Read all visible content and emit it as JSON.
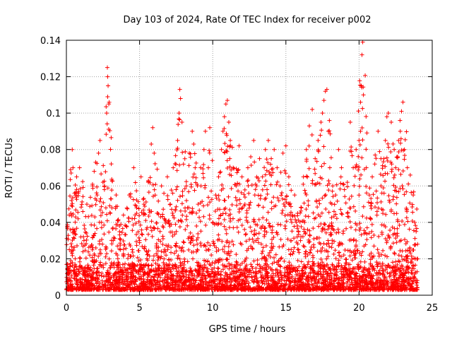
{
  "chart_data": {
    "type": "scatter",
    "title": "Day 103 of 2024, Rate Of TEC Index for receiver p002",
    "xlabel": "GPS time / hours",
    "ylabel": "ROTI / TECUs",
    "xlim": [
      0,
      25
    ],
    "ylim": [
      0,
      0.14
    ],
    "xticks": [
      0,
      5,
      10,
      15,
      20,
      25
    ],
    "xtick_labels": [
      "0",
      "5",
      "10",
      "15",
      "20",
      "25"
    ],
    "yticks": [
      0,
      0.02,
      0.04,
      0.06,
      0.08,
      0.1,
      0.12,
      0.14
    ],
    "ytick_labels": [
      "0",
      "0.02",
      "0.04",
      "0.06",
      "0.08",
      "0.1",
      "0.12",
      "0.14"
    ],
    "grid": true,
    "marker": "+",
    "marker_color": "#ff0000",
    "series": [
      {
        "name": "ROTI",
        "points": [
          [
            0.1,
            0.012
          ],
          [
            0.2,
            0.025
          ],
          [
            0.3,
            0.045
          ],
          [
            0.35,
            0.052
          ],
          [
            0.4,
            0.08
          ],
          [
            0.45,
            0.07
          ],
          [
            0.5,
            0.035
          ],
          [
            0.6,
            0.02
          ],
          [
            0.7,
            0.065
          ],
          [
            0.8,
            0.042
          ],
          [
            0.9,
            0.07
          ],
          [
            1.0,
            0.015
          ],
          [
            1.2,
            0.03
          ],
          [
            1.4,
            0.05
          ],
          [
            1.6,
            0.022
          ],
          [
            1.8,
            0.06
          ],
          [
            1.9,
            0.068
          ],
          [
            2.0,
            0.073
          ],
          [
            2.1,
            0.055
          ],
          [
            2.2,
            0.078
          ],
          [
            2.3,
            0.085
          ],
          [
            2.4,
            0.04
          ],
          [
            2.5,
            0.062
          ],
          [
            2.6,
            0.058
          ],
          [
            2.7,
            0.048
          ],
          [
            2.75,
            0.1
          ],
          [
            2.8,
            0.125
          ],
          [
            2.82,
            0.12
          ],
          [
            2.85,
            0.115
          ],
          [
            2.9,
            0.105
          ],
          [
            3.0,
            0.045
          ],
          [
            3.2,
            0.03
          ],
          [
            3.4,
            0.055
          ],
          [
            3.5,
            0.041
          ],
          [
            3.7,
            0.025
          ],
          [
            3.9,
            0.044
          ],
          [
            4.1,
            0.038
          ],
          [
            4.3,
            0.055
          ],
          [
            4.5,
            0.025
          ],
          [
            4.6,
            0.07
          ],
          [
            4.8,
            0.045
          ],
          [
            5.0,
            0.03
          ],
          [
            5.1,
            0.065
          ],
          [
            5.3,
            0.05
          ],
          [
            5.5,
            0.02
          ],
          [
            5.6,
            0.062
          ],
          [
            5.8,
            0.083
          ],
          [
            5.9,
            0.092
          ],
          [
            6.0,
            0.078
          ],
          [
            6.2,
            0.045
          ],
          [
            6.4,
            0.035
          ],
          [
            6.5,
            0.06
          ],
          [
            6.7,
            0.042
          ],
          [
            6.9,
            0.065
          ],
          [
            7.1,
            0.05
          ],
          [
            7.3,
            0.07
          ],
          [
            7.5,
            0.058
          ],
          [
            7.6,
            0.085
          ],
          [
            7.7,
            0.1
          ],
          [
            7.75,
            0.113
          ],
          [
            7.8,
            0.108
          ],
          [
            7.9,
            0.095
          ],
          [
            8.0,
            0.072
          ],
          [
            8.2,
            0.06
          ],
          [
            8.4,
            0.078
          ],
          [
            8.6,
            0.09
          ],
          [
            8.7,
            0.083
          ],
          [
            8.8,
            0.07
          ],
          [
            9.0,
            0.05
          ],
          [
            9.2,
            0.06
          ],
          [
            9.4,
            0.08
          ],
          [
            9.5,
            0.09
          ],
          [
            9.7,
            0.07
          ],
          [
            9.8,
            0.092
          ],
          [
            10.0,
            0.04
          ],
          [
            10.2,
            0.055
          ],
          [
            10.4,
            0.065
          ],
          [
            10.6,
            0.08
          ],
          [
            10.7,
            0.09
          ],
          [
            10.8,
            0.098
          ],
          [
            10.9,
            0.105
          ],
          [
            11.0,
            0.107
          ],
          [
            11.1,
            0.095
          ],
          [
            11.2,
            0.085
          ],
          [
            11.4,
            0.07
          ],
          [
            11.6,
            0.06
          ],
          [
            11.8,
            0.082
          ],
          [
            12.0,
            0.065
          ],
          [
            12.2,
            0.05
          ],
          [
            12.4,
            0.07
          ],
          [
            12.6,
            0.076
          ],
          [
            12.8,
            0.085
          ],
          [
            13.0,
            0.06
          ],
          [
            13.2,
            0.075
          ],
          [
            13.4,
            0.065
          ],
          [
            13.6,
            0.08
          ],
          [
            13.8,
            0.085
          ],
          [
            14.0,
            0.075
          ],
          [
            14.2,
            0.08
          ],
          [
            14.4,
            0.07
          ],
          [
            14.6,
            0.06
          ],
          [
            14.8,
            0.078
          ],
          [
            15.0,
            0.082
          ],
          [
            15.2,
            0.065
          ],
          [
            15.4,
            0.04
          ],
          [
            15.6,
            0.055
          ],
          [
            15.8,
            0.045
          ],
          [
            16.0,
            0.03
          ],
          [
            16.2,
            0.065
          ],
          [
            16.4,
            0.08
          ],
          [
            16.6,
            0.093
          ],
          [
            16.8,
            0.102
          ],
          [
            17.0,
            0.075
          ],
          [
            17.2,
            0.085
          ],
          [
            17.4,
            0.095
          ],
          [
            17.5,
            0.1
          ],
          [
            17.6,
            0.107
          ],
          [
            17.7,
            0.112
          ],
          [
            17.8,
            0.113
          ],
          [
            17.9,
            0.09
          ],
          [
            18.0,
            0.07
          ],
          [
            18.2,
            0.06
          ],
          [
            18.4,
            0.055
          ],
          [
            18.6,
            0.08
          ],
          [
            18.8,
            0.07
          ],
          [
            19.0,
            0.058
          ],
          [
            19.2,
            0.062
          ],
          [
            19.4,
            0.095
          ],
          [
            19.6,
            0.07
          ],
          [
            19.8,
            0.08
          ],
          [
            20.0,
            0.085
          ],
          [
            20.1,
            0.09
          ],
          [
            20.15,
            0.115
          ],
          [
            20.2,
            0.132
          ],
          [
            20.25,
            0.139
          ],
          [
            20.3,
            0.11
          ],
          [
            20.5,
            0.07
          ],
          [
            20.7,
            0.055
          ],
          [
            20.9,
            0.065
          ],
          [
            21.1,
            0.077
          ],
          [
            21.3,
            0.09
          ],
          [
            21.5,
            0.06
          ],
          [
            21.7,
            0.075
          ],
          [
            21.8,
            0.085
          ],
          [
            21.9,
            0.098
          ],
          [
            22.0,
            0.1
          ],
          [
            22.2,
            0.095
          ],
          [
            22.4,
            0.08
          ],
          [
            22.5,
            0.07
          ],
          [
            22.7,
            0.085
          ],
          [
            22.8,
            0.096
          ],
          [
            22.9,
            0.101
          ],
          [
            23.0,
            0.106
          ],
          [
            23.1,
            0.08
          ],
          [
            23.3,
            0.07
          ],
          [
            23.5,
            0.066
          ],
          [
            23.7,
            0.055
          ],
          [
            23.8,
            0.04
          ],
          [
            23.9,
            0.035
          ],
          [
            24.0,
            0.02
          ]
        ],
        "envelope_note": "dense cloud of points between 0.002 and ~0.07 across 0–24 h"
      }
    ]
  }
}
